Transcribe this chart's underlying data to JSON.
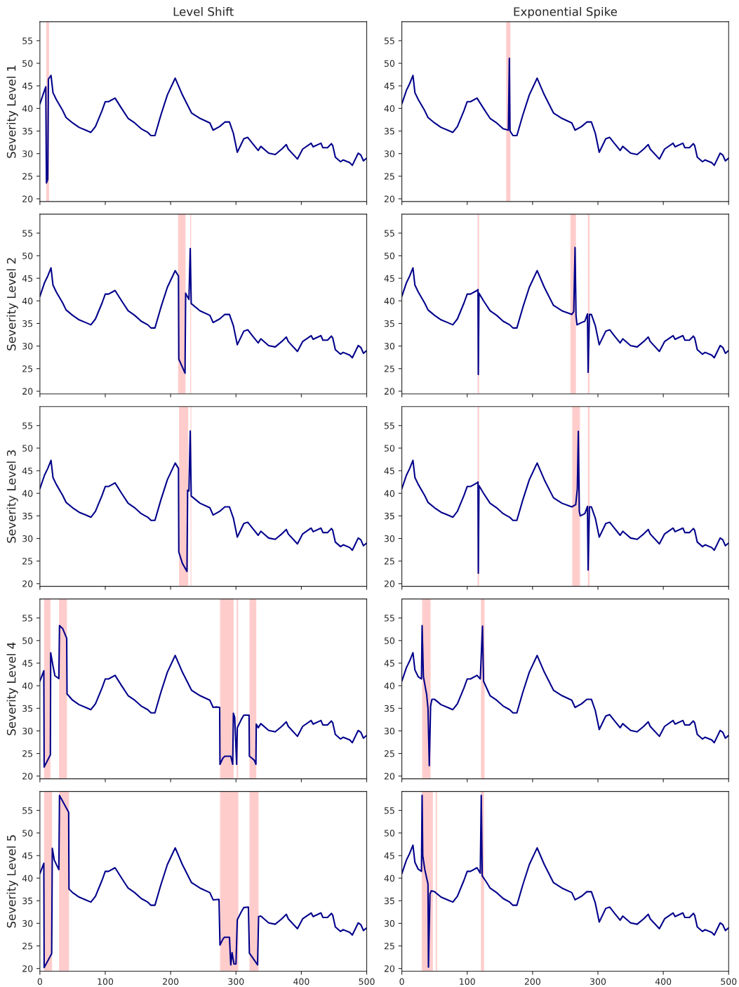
{
  "chart_data": [
    {
      "type": "line",
      "title": "Level Shift",
      "ylabel": "Severity Level 1",
      "xlim": [
        0,
        500
      ],
      "ylim": [
        19.4,
        59.2
      ],
      "xticks": [
        0,
        100,
        200,
        300,
        400,
        500
      ],
      "yticks": [
        20,
        25,
        30,
        35,
        40,
        45,
        50,
        55
      ],
      "tick_labels": "y",
      "series": [
        {
          "color": "#00008b",
          "x": [
            0,
            7,
            9,
            10,
            12,
            13,
            17,
            20,
            25,
            35,
            40,
            50,
            60,
            70,
            78,
            85,
            95,
            100,
            105,
            115,
            125,
            135,
            145,
            155,
            165,
            170,
            176,
            185,
            195,
            207,
            218,
            232,
            245,
            260,
            265,
            275,
            283,
            290,
            296,
            302,
            312,
            318,
            325,
            334,
            338,
            350,
            360,
            370,
            377,
            380,
            394,
            402,
            415,
            418,
            430,
            433,
            440,
            446,
            448,
            452,
            460,
            464,
            474,
            478,
            487,
            491,
            495,
            500
          ],
          "values": [
            41.0,
            44.0,
            44.8,
            23.5,
            24.3,
            46.5,
            47.3,
            43.5,
            42.0,
            39.5,
            38.0,
            36.8,
            35.8,
            35.2,
            34.7,
            36.0,
            39.5,
            41.5,
            41.5,
            42.3,
            40.0,
            37.8,
            36.8,
            35.5,
            34.7,
            34.0,
            34.0,
            38.5,
            43.0,
            46.7,
            43.0,
            39.0,
            37.8,
            36.8,
            35.2,
            36.0,
            37.0,
            37.0,
            34.5,
            30.3,
            33.3,
            33.6,
            32.3,
            30.7,
            31.6,
            30.1,
            29.8,
            31.0,
            32.0,
            31.0,
            28.8,
            31.0,
            32.3,
            31.5,
            32.3,
            31.3,
            31.3,
            32.2,
            31.8,
            29.2,
            28.2,
            28.6,
            28.0,
            27.4,
            30.1,
            29.7,
            28.4,
            29.0
          ]
        }
      ],
      "bands": [
        {
          "axis": "x",
          "from": 9.7,
          "to": 14,
          "color": "#ffcccc"
        }
      ]
    },
    {
      "type": "line",
      "title": "Exponential Spike",
      "xlim": [
        0,
        500
      ],
      "ylim": [
        19.4,
        59.2
      ],
      "xticks": [
        0,
        100,
        200,
        300,
        400,
        500
      ],
      "yticks": [
        20,
        25,
        30,
        35,
        40,
        45,
        50,
        55
      ],
      "tick_labels": "y",
      "series": [
        {
          "color": "#00008b",
          "x": [
            0,
            7,
            12,
            17,
            20,
            25,
            35,
            40,
            50,
            60,
            70,
            78,
            85,
            95,
            100,
            105,
            115,
            125,
            135,
            145,
            155,
            160,
            163,
            164.5,
            165.5,
            170,
            176,
            185,
            195,
            207,
            218,
            232,
            245,
            260,
            265,
            275,
            283,
            290,
            296,
            302,
            312,
            318,
            325,
            334,
            338,
            350,
            360,
            370,
            377,
            380,
            394,
            402,
            415,
            418,
            430,
            433,
            440,
            446,
            448,
            452,
            460,
            464,
            474,
            478,
            487,
            491,
            495,
            500
          ],
          "values": [
            41.0,
            44.0,
            45.5,
            47.3,
            43.5,
            42.0,
            39.5,
            38.0,
            36.8,
            35.8,
            35.2,
            34.7,
            36.0,
            39.5,
            41.5,
            41.5,
            42.3,
            40.0,
            37.8,
            36.8,
            35.5,
            35.3,
            35.2,
            51.1,
            35.0,
            34.0,
            34.0,
            38.5,
            43.0,
            46.7,
            43.0,
            39.0,
            37.8,
            36.8,
            35.2,
            36.0,
            37.0,
            37.0,
            34.5,
            30.3,
            33.3,
            33.6,
            32.3,
            30.7,
            31.6,
            30.1,
            29.8,
            31.0,
            32.0,
            31.0,
            28.8,
            31.0,
            32.3,
            31.5,
            32.3,
            31.3,
            31.3,
            32.2,
            31.8,
            29.2,
            28.2,
            28.6,
            28.0,
            27.4,
            30.1,
            29.7,
            28.4,
            29.0
          ]
        }
      ],
      "bands": [
        {
          "axis": "x",
          "from": 159.7,
          "to": 166.1,
          "color": "#ffcccc"
        }
      ]
    },
    {
      "type": "line",
      "ylabel": "Severity Level 2",
      "xlim": [
        0,
        500
      ],
      "ylim": [
        19.4,
        59.2
      ],
      "xticks": [
        0,
        100,
        200,
        300,
        400,
        500
      ],
      "yticks": [
        20,
        25,
        30,
        35,
        40,
        45,
        50,
        55
      ],
      "tick_labels": "y",
      "series": [
        {
          "color": "#00008b",
          "x": [
            0,
            7,
            12,
            17,
            20,
            25,
            35,
            40,
            50,
            60,
            70,
            78,
            85,
            95,
            100,
            105,
            115,
            125,
            135,
            145,
            155,
            165,
            170,
            176,
            185,
            195,
            207,
            212,
            212.5,
            215,
            222,
            223,
            228,
            230,
            231.5,
            245,
            260,
            265,
            275,
            283,
            290,
            296,
            302,
            312,
            318,
            325,
            334,
            338,
            350,
            360,
            370,
            377,
            380,
            394,
            402,
            415,
            418,
            430,
            433,
            440,
            446,
            448,
            452,
            460,
            464,
            474,
            478,
            487,
            491,
            495,
            500
          ],
          "values": [
            41.0,
            44.0,
            45.5,
            47.3,
            43.5,
            42.0,
            39.5,
            38.0,
            36.8,
            35.8,
            35.2,
            34.7,
            36.0,
            39.5,
            41.5,
            41.5,
            42.3,
            40.0,
            37.8,
            36.8,
            35.5,
            34.7,
            34.0,
            34.0,
            38.5,
            43.0,
            46.7,
            45.5,
            27.1,
            26.3,
            24.0,
            41.7,
            40.3,
            51.6,
            39.4,
            37.8,
            36.8,
            35.2,
            36.0,
            37.0,
            37.0,
            34.5,
            30.3,
            33.3,
            33.6,
            32.3,
            30.7,
            31.6,
            30.1,
            29.8,
            31.0,
            32.0,
            31.0,
            28.8,
            31.0,
            32.3,
            31.5,
            32.3,
            31.3,
            31.3,
            32.2,
            31.8,
            29.2,
            28.2,
            28.6,
            28.0,
            27.4,
            30.1,
            29.7,
            28.4,
            29.0
          ]
        }
      ],
      "bands": [
        {
          "axis": "x",
          "from": 211.4,
          "to": 222.9,
          "color": "#ffcccc"
        },
        {
          "axis": "x",
          "from": 230,
          "to": 231.4,
          "color": "#ffcccc"
        }
      ]
    },
    {
      "type": "line",
      "xlim": [
        0,
        500
      ],
      "ylim": [
        19.4,
        59.2
      ],
      "xticks": [
        0,
        100,
        200,
        300,
        400,
        500
      ],
      "yticks": [
        20,
        25,
        30,
        35,
        40,
        45,
        50,
        55
      ],
      "tick_labels": "y",
      "series": [
        {
          "color": "#00008b",
          "x": [
            0,
            7,
            12,
            17,
            20,
            25,
            35,
            40,
            50,
            60,
            70,
            78,
            85,
            95,
            100,
            105,
            115,
            116.5,
            117,
            118,
            125,
            135,
            145,
            155,
            165,
            170,
            176,
            185,
            195,
            207,
            218,
            232,
            245,
            260,
            263,
            265,
            266.5,
            268,
            275,
            280,
            284,
            285,
            287,
            290,
            296,
            302,
            312,
            318,
            325,
            334,
            338,
            350,
            360,
            370,
            377,
            380,
            394,
            402,
            415,
            418,
            430,
            433,
            440,
            446,
            448,
            452,
            460,
            464,
            474,
            478,
            487,
            491,
            495,
            500
          ],
          "values": [
            41.0,
            44.0,
            45.5,
            47.3,
            43.5,
            42.0,
            39.5,
            38.0,
            36.8,
            35.8,
            35.2,
            34.7,
            36.0,
            39.5,
            41.5,
            41.5,
            42.3,
            42.5,
            23.7,
            41.7,
            40.0,
            37.8,
            36.8,
            35.5,
            34.7,
            34.0,
            34.0,
            38.5,
            43.0,
            46.7,
            43.0,
            39.0,
            37.8,
            37.0,
            37.6,
            51.8,
            36.7,
            34.7,
            35.2,
            35.5,
            37.1,
            24.2,
            37.0,
            37.0,
            34.5,
            30.3,
            33.3,
            33.6,
            32.3,
            30.7,
            31.6,
            30.1,
            29.8,
            31.0,
            32.0,
            31.0,
            28.8,
            31.0,
            32.3,
            31.5,
            32.3,
            31.3,
            31.3,
            32.2,
            31.8,
            29.2,
            28.2,
            28.6,
            28.0,
            27.4,
            30.1,
            29.7,
            28.4,
            29.0
          ]
        }
      ],
      "bands": [
        {
          "axis": "x",
          "from": 116,
          "to": 118.2,
          "color": "#ffcccc"
        },
        {
          "axis": "x",
          "from": 257.9,
          "to": 266.4,
          "color": "#ffcccc"
        },
        {
          "axis": "x",
          "from": 284.6,
          "to": 287.1,
          "color": "#ffcccc"
        }
      ]
    },
    {
      "type": "line",
      "ylabel": "Severity Level 3",
      "xlim": [
        0,
        500
      ],
      "ylim": [
        19.4,
        59.2
      ],
      "xticks": [
        0,
        100,
        200,
        300,
        400,
        500
      ],
      "yticks": [
        20,
        25,
        30,
        35,
        40,
        45,
        50,
        55
      ],
      "tick_labels": "y",
      "series": [
        {
          "color": "#00008b",
          "x": [
            0,
            7,
            12,
            17,
            20,
            25,
            35,
            40,
            50,
            60,
            70,
            78,
            85,
            95,
            100,
            105,
            115,
            125,
            135,
            145,
            155,
            165,
            170,
            176,
            185,
            195,
            207,
            212,
            212.5,
            218,
            225,
            226,
            228,
            230,
            231.5,
            245,
            260,
            265,
            275,
            283,
            290,
            296,
            302,
            312,
            318,
            325,
            334,
            338,
            350,
            360,
            370,
            377,
            380,
            394,
            402,
            415,
            418,
            430,
            433,
            440,
            446,
            448,
            452,
            460,
            464,
            474,
            478,
            487,
            491,
            495,
            500
          ],
          "values": [
            41.0,
            44.0,
            45.5,
            47.3,
            43.5,
            42.0,
            39.5,
            38.0,
            36.8,
            35.8,
            35.2,
            34.7,
            36.0,
            39.5,
            41.5,
            41.5,
            42.3,
            40.0,
            37.8,
            36.8,
            35.5,
            34.7,
            34.0,
            34.0,
            38.5,
            43.0,
            46.7,
            45.5,
            27.0,
            24.5,
            22.7,
            40.7,
            40.5,
            53.8,
            39.4,
            37.8,
            36.8,
            35.2,
            36.0,
            37.0,
            37.0,
            34.5,
            30.3,
            33.3,
            33.6,
            32.3,
            30.7,
            31.6,
            30.1,
            29.8,
            31.0,
            32.0,
            31.0,
            28.8,
            31.0,
            32.3,
            31.5,
            32.3,
            31.3,
            31.3,
            32.2,
            31.8,
            29.2,
            28.2,
            28.6,
            28.0,
            27.4,
            30.1,
            29.7,
            28.4,
            29.0
          ]
        }
      ],
      "bands": [
        {
          "axis": "x",
          "from": 212.9,
          "to": 226.9,
          "color": "#ffcccc"
        },
        {
          "axis": "x",
          "from": 230.5,
          "to": 231.7,
          "color": "#ffcccc"
        }
      ]
    },
    {
      "type": "line",
      "xlim": [
        0,
        500
      ],
      "ylim": [
        19.4,
        59.2
      ],
      "xticks": [
        0,
        100,
        200,
        300,
        400,
        500
      ],
      "yticks": [
        20,
        25,
        30,
        35,
        40,
        45,
        50,
        55
      ],
      "tick_labels": "y",
      "series": [
        {
          "color": "#00008b",
          "x": [
            0,
            7,
            12,
            17,
            20,
            25,
            35,
            40,
            50,
            60,
            70,
            78,
            85,
            95,
            100,
            105,
            115,
            116.5,
            117,
            118,
            125,
            135,
            145,
            155,
            165,
            170,
            176,
            185,
            195,
            207,
            218,
            232,
            245,
            260,
            266,
            268.5,
            270,
            271.5,
            273,
            280,
            284,
            285,
            287,
            290,
            296,
            302,
            312,
            318,
            325,
            334,
            338,
            350,
            360,
            370,
            377,
            380,
            394,
            402,
            415,
            418,
            430,
            433,
            440,
            446,
            448,
            452,
            460,
            464,
            474,
            478,
            487,
            491,
            495,
            500
          ],
          "values": [
            41.0,
            44.0,
            45.5,
            47.3,
            43.5,
            42.0,
            39.5,
            38.0,
            36.8,
            35.8,
            35.2,
            34.7,
            36.0,
            39.5,
            41.5,
            41.5,
            42.3,
            42.5,
            22.3,
            41.7,
            40.0,
            37.8,
            36.8,
            35.5,
            34.7,
            34.0,
            34.0,
            38.5,
            43.0,
            46.7,
            43.0,
            39.0,
            37.8,
            37.0,
            37.5,
            41.0,
            53.7,
            36.0,
            35.0,
            35.5,
            37.1,
            23.0,
            37.0,
            37.0,
            34.5,
            30.3,
            33.3,
            33.6,
            32.3,
            30.7,
            31.6,
            30.1,
            29.8,
            31.0,
            32.0,
            31.0,
            28.8,
            31.0,
            32.3,
            31.5,
            32.3,
            31.3,
            31.3,
            32.2,
            31.8,
            29.2,
            28.2,
            28.6,
            28.0,
            27.4,
            30.1,
            29.7,
            28.4,
            29.0
          ]
        }
      ],
      "bands": [
        {
          "axis": "x",
          "from": 116,
          "to": 118.2,
          "color": "#ffcccc"
        },
        {
          "axis": "x",
          "from": 260.7,
          "to": 272.5,
          "color": "#ffcccc"
        },
        {
          "axis": "x",
          "from": 284.6,
          "to": 287.1,
          "color": "#ffcccc"
        }
      ]
    },
    {
      "type": "line",
      "ylabel": "Severity Level 4",
      "xlim": [
        0,
        500
      ],
      "ylim": [
        19.4,
        59.2
      ],
      "xticks": [
        0,
        100,
        200,
        300,
        400,
        500
      ],
      "yticks": [
        20,
        25,
        30,
        35,
        40,
        45,
        50,
        55
      ],
      "tick_labels": "y",
      "series": [
        {
          "color": "#00008b",
          "x": [
            0,
            6,
            6.5,
            16,
            16.5,
            20,
            23,
            29,
            30,
            35,
            41,
            41.5,
            50,
            60,
            70,
            78,
            85,
            95,
            100,
            105,
            115,
            125,
            135,
            145,
            155,
            165,
            170,
            176,
            185,
            195,
            207,
            218,
            232,
            245,
            260,
            265,
            270,
            275,
            275.5,
            280,
            283,
            292,
            295,
            296,
            298,
            301,
            302,
            308,
            312,
            320,
            320.5,
            324,
            328,
            330.5,
            331,
            334,
            338,
            350,
            360,
            370,
            377,
            380,
            394,
            402,
            415,
            418,
            430,
            433,
            440,
            446,
            448,
            452,
            460,
            464,
            474,
            478,
            487,
            491,
            495,
            500
          ],
          "values": [
            41.0,
            43.3,
            22.0,
            24.7,
            47.3,
            44.4,
            42.2,
            41.6,
            53.3,
            52.6,
            50.5,
            38.2,
            36.8,
            35.8,
            35.2,
            34.7,
            36.0,
            39.5,
            41.5,
            41.5,
            42.3,
            40.0,
            37.8,
            36.8,
            35.5,
            34.7,
            34.0,
            34.0,
            38.5,
            43.0,
            46.7,
            43.0,
            39.0,
            37.8,
            36.8,
            35.2,
            35.3,
            35.2,
            22.6,
            24.0,
            24.4,
            24.4,
            22.6,
            33.9,
            33.0,
            22.6,
            30.7,
            32.5,
            33.5,
            33.5,
            24.4,
            24.0,
            23.5,
            22.6,
            31.5,
            30.7,
            31.6,
            30.1,
            29.8,
            31.0,
            32.0,
            31.0,
            28.8,
            31.0,
            32.3,
            31.5,
            32.3,
            31.3,
            31.3,
            32.2,
            31.8,
            29.2,
            28.2,
            28.6,
            28.0,
            27.4,
            30.1,
            29.7,
            28.4,
            29.0
          ]
        }
      ],
      "bands": [
        {
          "axis": "x",
          "from": 6.4,
          "to": 16.1,
          "color": "#ffcccc"
        },
        {
          "axis": "x",
          "from": 29.3,
          "to": 41.4,
          "color": "#ffcccc"
        },
        {
          "axis": "x",
          "from": 275.7,
          "to": 296.4,
          "color": "#ffcccc"
        },
        {
          "axis": "x",
          "from": 301,
          "to": 303.2,
          "color": "#ffcccc"
        },
        {
          "axis": "x",
          "from": 320.7,
          "to": 331.1,
          "color": "#ffcccc"
        }
      ]
    },
    {
      "type": "line",
      "xlim": [
        0,
        500
      ],
      "ylim": [
        19.4,
        59.2
      ],
      "xticks": [
        0,
        100,
        200,
        300,
        400,
        500
      ],
      "yticks": [
        20,
        25,
        30,
        35,
        40,
        45,
        50,
        55
      ],
      "tick_labels": "y",
      "series": [
        {
          "color": "#00008b",
          "x": [
            0,
            7,
            12,
            17,
            20,
            25,
            30,
            31,
            33,
            38,
            40,
            42,
            44,
            46,
            50,
            60,
            70,
            78,
            85,
            95,
            100,
            105,
            115,
            120,
            123.4,
            125,
            135,
            145,
            155,
            165,
            170,
            176,
            185,
            195,
            207,
            218,
            232,
            245,
            260,
            265,
            275,
            283,
            290,
            296,
            302,
            312,
            318,
            325,
            334,
            338,
            350,
            360,
            370,
            377,
            380,
            394,
            402,
            415,
            418,
            430,
            433,
            440,
            446,
            448,
            452,
            460,
            464,
            474,
            478,
            487,
            491,
            495,
            500
          ],
          "values": [
            41.0,
            44.0,
            45.5,
            47.3,
            43.5,
            42.0,
            41.5,
            53.3,
            42.0,
            38.0,
            35.0,
            22.3,
            35.5,
            37.0,
            37.0,
            35.8,
            35.2,
            34.7,
            36.0,
            39.5,
            41.5,
            41.5,
            42.3,
            41.5,
            53.2,
            41.0,
            37.8,
            36.8,
            35.5,
            34.7,
            34.0,
            34.0,
            38.5,
            43.0,
            46.7,
            43.0,
            39.0,
            37.8,
            36.8,
            35.2,
            36.0,
            37.0,
            37.0,
            34.5,
            30.3,
            33.3,
            33.6,
            32.3,
            30.7,
            31.6,
            30.1,
            29.8,
            31.0,
            32.0,
            31.0,
            28.8,
            31.0,
            32.3,
            31.5,
            32.3,
            31.3,
            31.3,
            32.2,
            31.8,
            29.2,
            28.2,
            28.6,
            28.0,
            27.4,
            30.1,
            29.7,
            28.4,
            29.0
          ]
        }
      ],
      "bands": [
        {
          "axis": "x",
          "from": 31.1,
          "to": 44,
          "color": "#ffcccc"
        },
        {
          "axis": "x",
          "from": 121,
          "to": 126.6,
          "color": "#ffcccc"
        }
      ]
    },
    {
      "type": "line",
      "ylabel": "Severity Level 5",
      "xlim": [
        0,
        500
      ],
      "ylim": [
        19.4,
        59.2
      ],
      "xticks": [
        0,
        100,
        200,
        300,
        400,
        500
      ],
      "yticks": [
        20,
        25,
        30,
        35,
        40,
        45,
        50,
        55
      ],
      "series": [
        {
          "color": "#00008b",
          "x": [
            0,
            6,
            6.5,
            18,
            19,
            22,
            29,
            30,
            33,
            44,
            44.5,
            50,
            60,
            70,
            78,
            85,
            95,
            100,
            105,
            115,
            125,
            135,
            145,
            155,
            165,
            170,
            176,
            185,
            195,
            207,
            218,
            232,
            245,
            260,
            265,
            274,
            275.5,
            280,
            282,
            290,
            292,
            294,
            297,
            300,
            302,
            308,
            312,
            319,
            320.5,
            325,
            333,
            334.6,
            338,
            350,
            360,
            370,
            377,
            380,
            394,
            402,
            415,
            418,
            430,
            433,
            440,
            446,
            448,
            452,
            460,
            464,
            474,
            478,
            487,
            491,
            495,
            500
          ],
          "values": [
            41.0,
            43.3,
            20.2,
            23.3,
            46.6,
            44.0,
            41.9,
            58.3,
            57.5,
            54.6,
            37.6,
            36.8,
            35.8,
            35.2,
            34.7,
            36.0,
            39.5,
            41.5,
            41.5,
            42.3,
            40.0,
            37.8,
            36.8,
            35.5,
            34.7,
            34.0,
            34.0,
            38.5,
            43.0,
            46.7,
            43.0,
            39.0,
            37.8,
            36.8,
            35.2,
            35.3,
            25.2,
            26.5,
            26.9,
            26.9,
            20.8,
            23.5,
            21.0,
            21.0,
            30.8,
            32.5,
            33.5,
            33.6,
            23.4,
            22.5,
            20.8,
            31.5,
            31.6,
            30.1,
            29.8,
            31.0,
            32.0,
            31.0,
            28.8,
            31.0,
            32.3,
            31.5,
            32.3,
            31.3,
            31.3,
            32.2,
            31.8,
            29.2,
            28.2,
            28.6,
            28.0,
            27.4,
            30.1,
            29.7,
            28.4,
            29.0
          ]
        }
      ],
      "bands": [
        {
          "axis": "x",
          "from": 6.4,
          "to": 18.6,
          "color": "#ffcccc"
        },
        {
          "axis": "x",
          "from": 29.3,
          "to": 44.6,
          "color": "#ffcccc"
        },
        {
          "axis": "x",
          "from": 275.7,
          "to": 303.6,
          "color": "#ffcccc"
        },
        {
          "axis": "x",
          "from": 320.7,
          "to": 334.6,
          "color": "#ffcccc"
        }
      ]
    },
    {
      "type": "line",
      "xlim": [
        0,
        500
      ],
      "ylim": [
        19.4,
        59.2
      ],
      "xticks": [
        0,
        100,
        200,
        300,
        400,
        500
      ],
      "yticks": [
        20,
        25,
        30,
        35,
        40,
        45,
        50,
        55
      ],
      "series": [
        {
          "color": "#00008b",
          "x": [
            0,
            7,
            12,
            17,
            20,
            25,
            30,
            31,
            32,
            35,
            40,
            40.7,
            43,
            45,
            50,
            60,
            70,
            78,
            85,
            95,
            100,
            105,
            115,
            120,
            121.5,
            123,
            130,
            135,
            145,
            155,
            165,
            170,
            176,
            185,
            195,
            207,
            218,
            232,
            245,
            260,
            265,
            275,
            283,
            290,
            296,
            302,
            312,
            318,
            325,
            334,
            338,
            350,
            360,
            370,
            377,
            380,
            394,
            402,
            415,
            418,
            430,
            433,
            440,
            446,
            448,
            452,
            460,
            464,
            474,
            478,
            487,
            491,
            495,
            500
          ],
          "values": [
            41.0,
            44.0,
            45.5,
            47.3,
            43.5,
            42.0,
            41.5,
            58.3,
            45.0,
            42.0,
            38.7,
            20.3,
            36.5,
            37.2,
            37.0,
            35.8,
            35.2,
            34.7,
            36.0,
            39.5,
            41.5,
            41.5,
            42.3,
            41.1,
            58.3,
            40.5,
            39.0,
            37.8,
            36.8,
            35.5,
            34.7,
            34.0,
            34.0,
            38.5,
            43.0,
            46.7,
            43.0,
            39.0,
            37.8,
            36.8,
            35.2,
            36.0,
            37.0,
            37.0,
            34.5,
            30.3,
            33.3,
            33.6,
            32.3,
            30.7,
            31.6,
            30.1,
            29.8,
            31.0,
            32.0,
            31.0,
            28.8,
            31.0,
            32.3,
            31.5,
            32.3,
            31.3,
            31.3,
            32.2,
            31.8,
            29.2,
            28.2,
            28.6,
            28.0,
            27.4,
            30.1,
            29.7,
            28.4,
            29.0
          ]
        }
      ],
      "bands": [
        {
          "axis": "x",
          "from": 30.4,
          "to": 47.5,
          "color": "#ffcccc"
        },
        {
          "axis": "x",
          "from": 51.8,
          "to": 53.9,
          "color": "#ffcccc"
        },
        {
          "axis": "x",
          "from": 121,
          "to": 125.7,
          "color": "#ffcccc"
        }
      ]
    }
  ]
}
